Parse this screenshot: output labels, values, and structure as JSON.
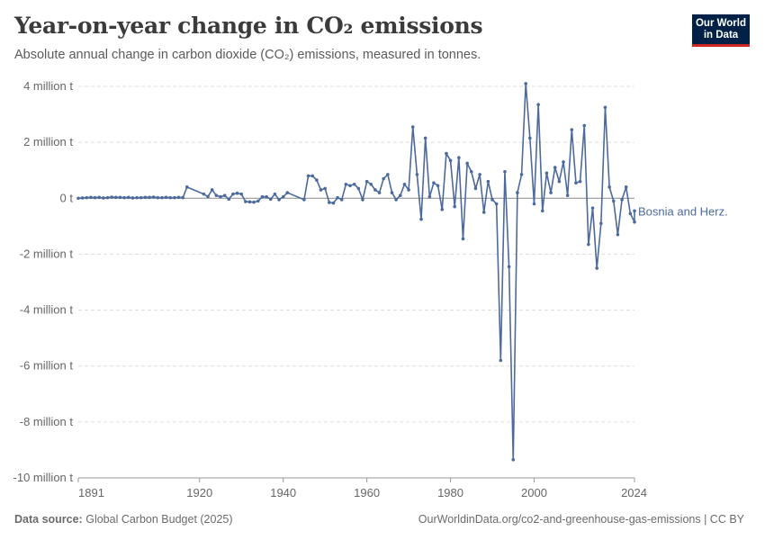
{
  "header": {
    "title": "Year-on-year change in CO₂ emissions",
    "subtitle": "Absolute annual change in carbon dioxide (CO₂) emissions, measured in tonnes."
  },
  "logo": {
    "line1": "Our World",
    "line2": "in Data"
  },
  "footer": {
    "source_label": "Data source:",
    "source": "Global Carbon Budget (2025)",
    "url": "OurWorldinData.org/co2-and-greenhouse-gas-emissions | CC BY"
  },
  "colors": {
    "series": "#4c6a9c",
    "grid": "#dddddd",
    "zero": "#8a8a8a",
    "logo_bg": "#002147",
    "logo_accent": "#ce261e"
  },
  "chart_data": {
    "type": "line",
    "title": "Year-on-year change in CO₂ emissions",
    "subtitle": "Absolute annual change in carbon dioxide (CO₂) emissions, measured in tonnes.",
    "xlabel": "",
    "ylabel": "",
    "xlim": [
      1891,
      2024
    ],
    "ylim": [
      -10000000,
      4000000
    ],
    "x_ticks": [
      1891,
      1920,
      1940,
      1960,
      1980,
      2000,
      2024
    ],
    "y_ticks": [
      {
        "value": 4000000,
        "label": "4 million t"
      },
      {
        "value": 2000000,
        "label": "2 million t"
      },
      {
        "value": 0,
        "label": "0 t"
      },
      {
        "value": -2000000,
        "label": "-2 million t"
      },
      {
        "value": -4000000,
        "label": "-4 million t"
      },
      {
        "value": -6000000,
        "label": "-6 million t"
      },
      {
        "value": -8000000,
        "label": "-8 million t"
      },
      {
        "value": -10000000,
        "label": "-10 million t"
      }
    ],
    "grid": true,
    "series": [
      {
        "name": "Bosnia and Herz.",
        "points": [
          [
            1891,
            0
          ],
          [
            1892,
            10000
          ],
          [
            1893,
            20000
          ],
          [
            1894,
            30000
          ],
          [
            1895,
            20000
          ],
          [
            1896,
            30000
          ],
          [
            1897,
            10000
          ],
          [
            1898,
            20000
          ],
          [
            1899,
            40000
          ],
          [
            1900,
            30000
          ],
          [
            1901,
            30000
          ],
          [
            1902,
            20000
          ],
          [
            1903,
            30000
          ],
          [
            1904,
            10000
          ],
          [
            1905,
            20000
          ],
          [
            1906,
            20000
          ],
          [
            1907,
            30000
          ],
          [
            1908,
            30000
          ],
          [
            1909,
            40000
          ],
          [
            1910,
            20000
          ],
          [
            1911,
            20000
          ],
          [
            1912,
            30000
          ],
          [
            1913,
            20000
          ],
          [
            1914,
            20000
          ],
          [
            1915,
            30000
          ],
          [
            1916,
            20000
          ],
          [
            1917,
            400000
          ],
          [
            1921,
            150000
          ],
          [
            1922,
            60000
          ],
          [
            1923,
            300000
          ],
          [
            1924,
            100000
          ],
          [
            1925,
            50000
          ],
          [
            1926,
            100000
          ],
          [
            1927,
            -30000
          ],
          [
            1928,
            150000
          ],
          [
            1929,
            180000
          ],
          [
            1930,
            150000
          ],
          [
            1931,
            -120000
          ],
          [
            1932,
            -130000
          ],
          [
            1933,
            -140000
          ],
          [
            1934,
            -100000
          ],
          [
            1935,
            50000
          ],
          [
            1936,
            50000
          ],
          [
            1937,
            -30000
          ],
          [
            1938,
            150000
          ],
          [
            1939,
            -50000
          ],
          [
            1940,
            50000
          ],
          [
            1941,
            200000
          ],
          [
            1945,
            -50000
          ],
          [
            1946,
            800000
          ],
          [
            1947,
            800000
          ],
          [
            1948,
            650000
          ],
          [
            1949,
            300000
          ],
          [
            1950,
            350000
          ],
          [
            1951,
            -150000
          ],
          [
            1952,
            -170000
          ],
          [
            1953,
            20000
          ],
          [
            1954,
            -50000
          ],
          [
            1955,
            500000
          ],
          [
            1956,
            450000
          ],
          [
            1957,
            500000
          ],
          [
            1958,
            350000
          ],
          [
            1959,
            -50000
          ],
          [
            1960,
            600000
          ],
          [
            1961,
            500000
          ],
          [
            1962,
            300000
          ],
          [
            1963,
            200000
          ],
          [
            1964,
            700000
          ],
          [
            1965,
            850000
          ],
          [
            1966,
            200000
          ],
          [
            1967,
            -50000
          ],
          [
            1968,
            100000
          ],
          [
            1969,
            500000
          ],
          [
            1970,
            300000
          ],
          [
            1971,
            2550000
          ],
          [
            1972,
            850000
          ],
          [
            1973,
            -750000
          ],
          [
            1974,
            2150000
          ],
          [
            1975,
            50000
          ],
          [
            1976,
            550000
          ],
          [
            1977,
            450000
          ],
          [
            1978,
            -400000
          ],
          [
            1979,
            1600000
          ],
          [
            1980,
            1350000
          ],
          [
            1981,
            -300000
          ],
          [
            1982,
            1450000
          ],
          [
            1983,
            -1450000
          ],
          [
            1984,
            1250000
          ],
          [
            1985,
            950000
          ],
          [
            1986,
            350000
          ],
          [
            1987,
            850000
          ],
          [
            1988,
            -500000
          ],
          [
            1989,
            600000
          ],
          [
            1990,
            -50000
          ],
          [
            1991,
            -200000
          ],
          [
            1992,
            -5800000
          ],
          [
            1993,
            950000
          ],
          [
            1994,
            -2450000
          ],
          [
            1995,
            -9350000
          ],
          [
            1996,
            200000
          ],
          [
            1997,
            850000
          ],
          [
            1998,
            4100000
          ],
          [
            1999,
            2150000
          ],
          [
            2000,
            -200000
          ],
          [
            2001,
            3350000
          ],
          [
            2002,
            -450000
          ],
          [
            2003,
            900000
          ],
          [
            2004,
            200000
          ],
          [
            2005,
            1100000
          ],
          [
            2006,
            600000
          ],
          [
            2007,
            1300000
          ],
          [
            2008,
            100000
          ],
          [
            2009,
            2450000
          ],
          [
            2010,
            550000
          ],
          [
            2011,
            600000
          ],
          [
            2012,
            2600000
          ],
          [
            2013,
            -1650000
          ],
          [
            2014,
            -350000
          ],
          [
            2015,
            -2500000
          ],
          [
            2016,
            -900000
          ],
          [
            2017,
            3250000
          ],
          [
            2018,
            400000
          ],
          [
            2019,
            -100000
          ],
          [
            2020,
            -1300000
          ],
          [
            2021,
            -50000
          ],
          [
            2022,
            400000
          ],
          [
            2023,
            -550000
          ],
          [
            2024,
            -850000
          ],
          [
            2025,
            -450000
          ]
        ]
      }
    ]
  }
}
